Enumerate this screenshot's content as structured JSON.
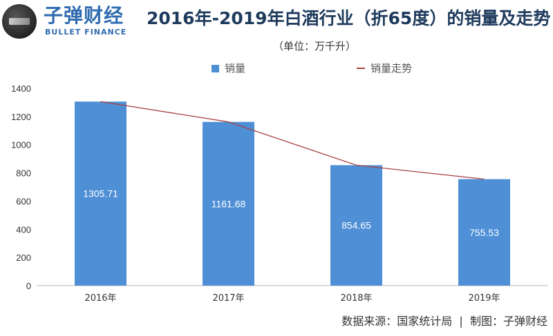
{
  "brand": {
    "name_cn": "子弹财经",
    "name_en": "BULLET FINANCE",
    "logo_text": "子弹财经"
  },
  "title": "2016年-2019年白酒行业（折65度）的销量及走势",
  "subtitle": "（单位：万千升）",
  "source": "数据来源：国家统计局  |  制图：子弹财经",
  "colors": {
    "bar": "#4e8fd6",
    "line": "#a94040",
    "title": "#1e3a5c",
    "brand": "#2f6bb0"
  },
  "chart_data": {
    "type": "bar",
    "categories": [
      "2016年",
      "2017年",
      "2018年",
      "2019年"
    ],
    "series": [
      {
        "name": "销量",
        "kind": "bar",
        "values": [
          1305.71,
          1161.68,
          854.65,
          755.53
        ],
        "data_labels": [
          "1305.71",
          "1161.68",
          "854.65",
          "755.53"
        ]
      },
      {
        "name": "销量走势",
        "kind": "line",
        "values": [
          1305.71,
          1161.68,
          854.65,
          755.53
        ]
      }
    ],
    "ylim": [
      0,
      1400
    ],
    "yticks": [
      "0",
      "200",
      "400",
      "600",
      "800",
      "1000",
      "1200",
      "1400"
    ],
    "grid": false,
    "legend": "top-center"
  }
}
